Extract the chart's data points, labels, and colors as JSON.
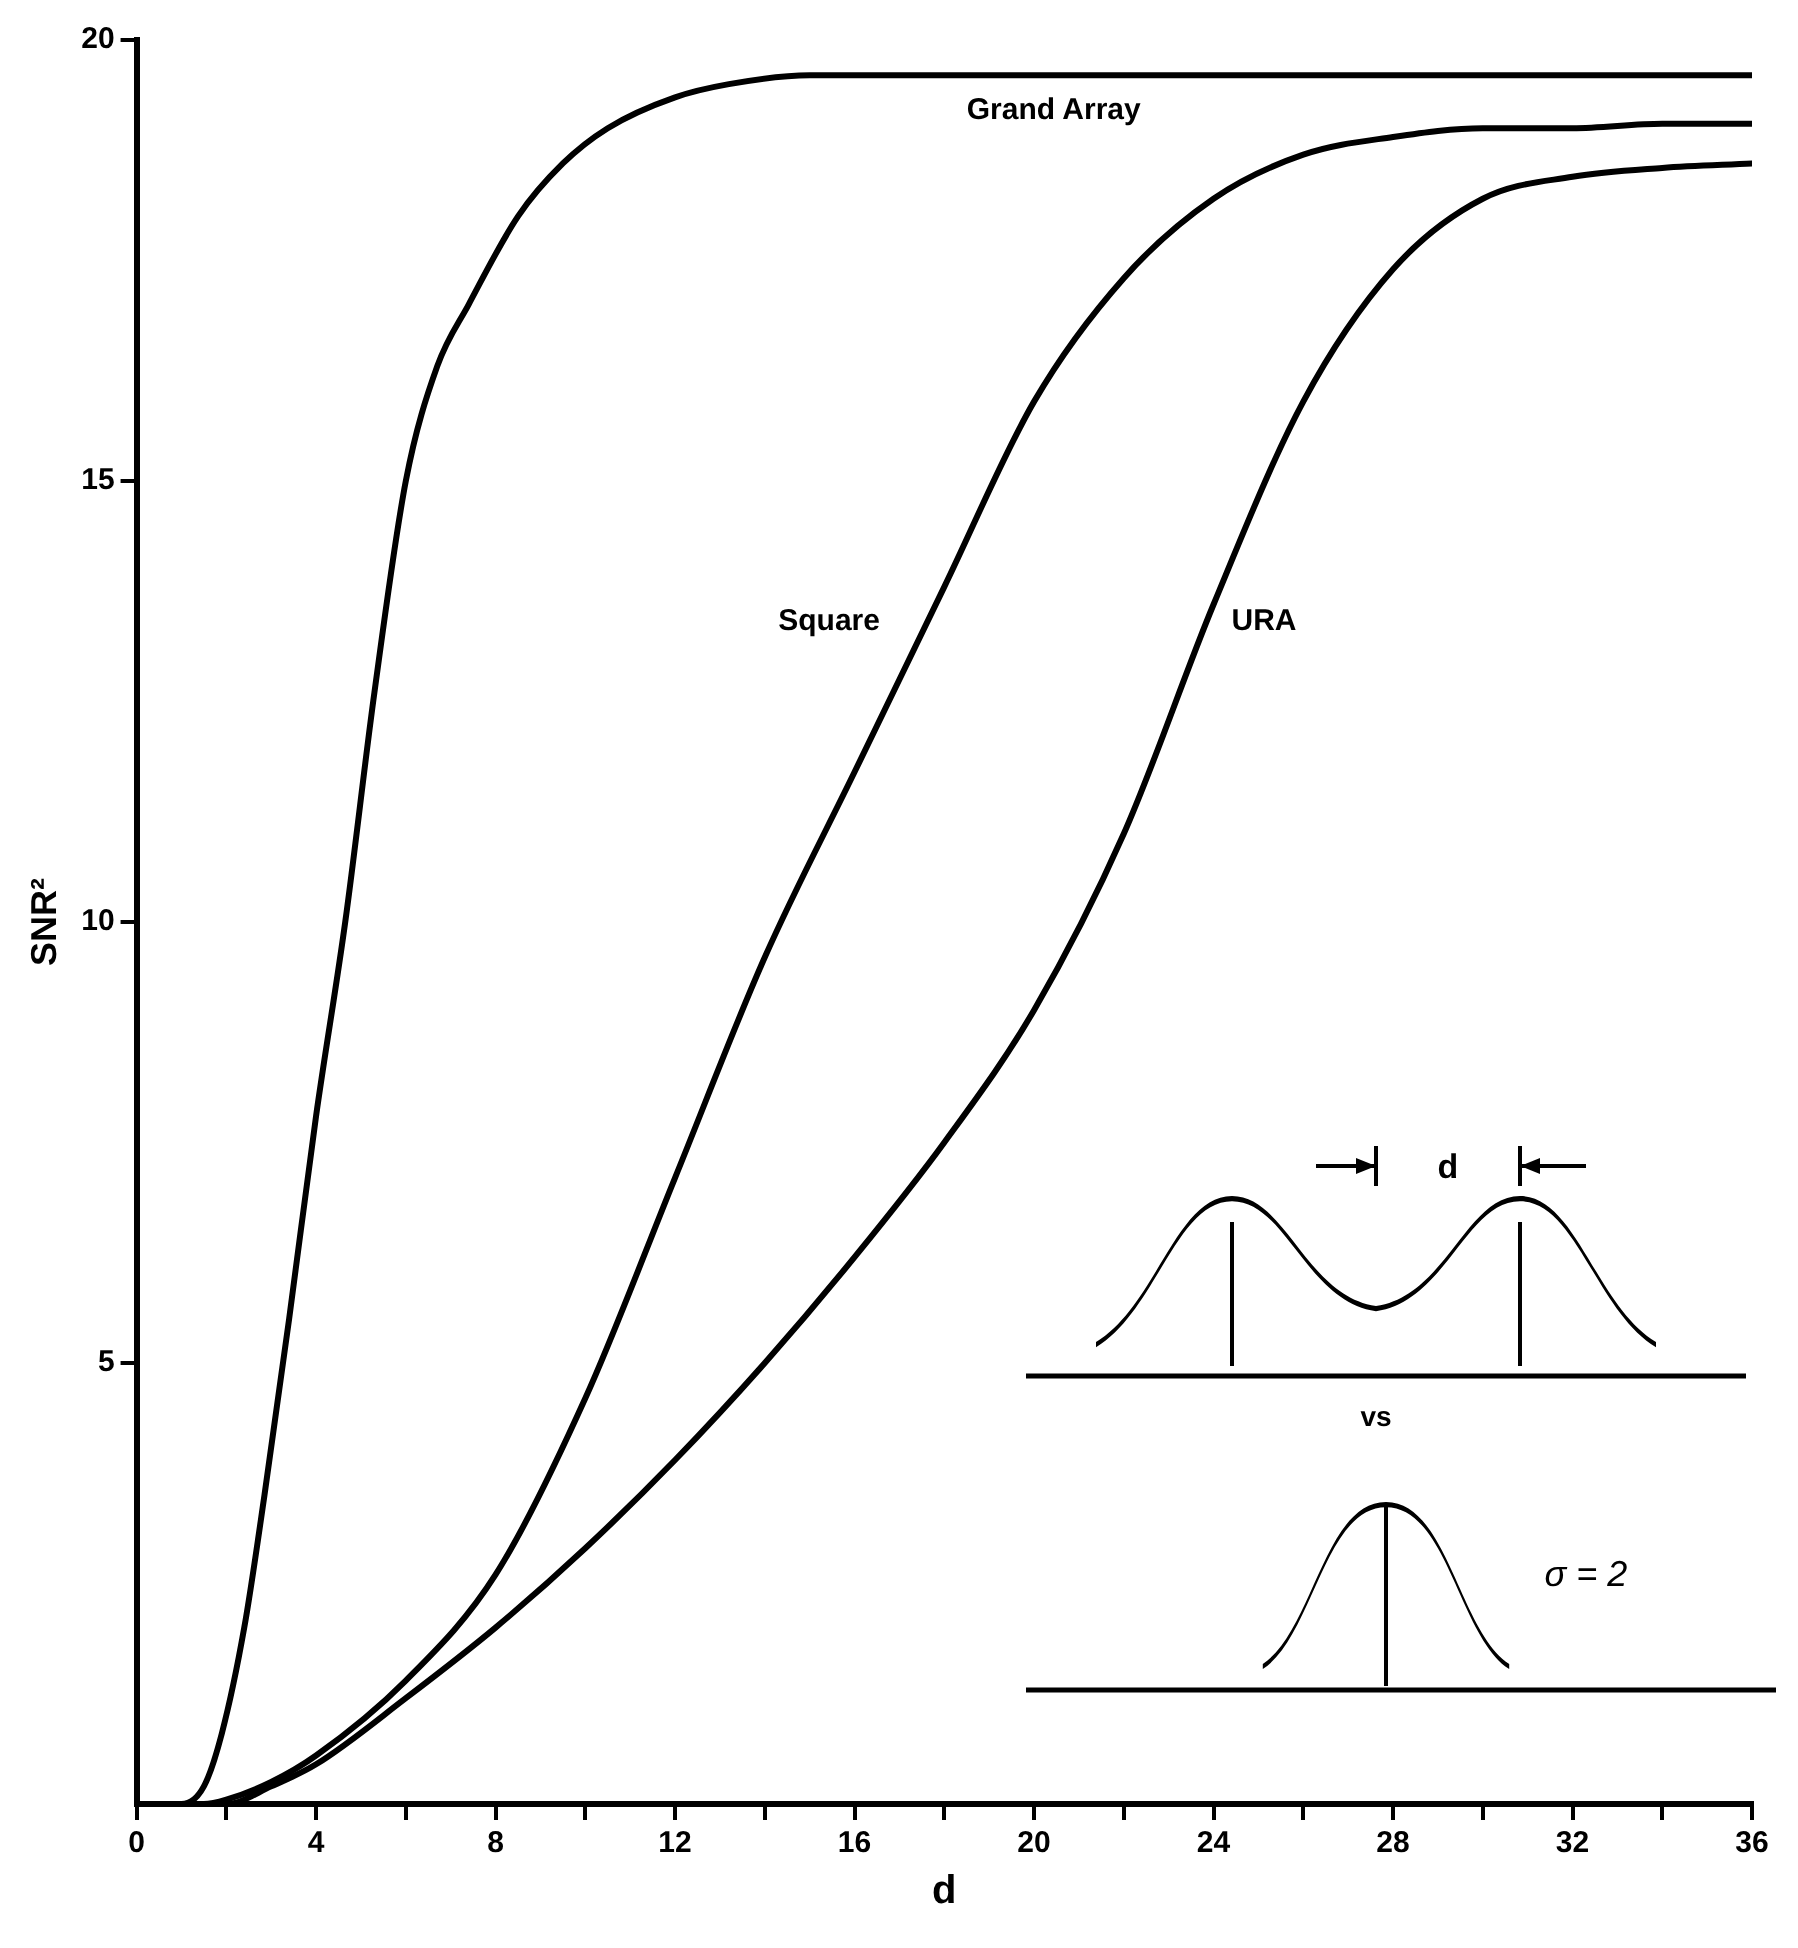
{
  "chart_data": {
    "type": "line",
    "xlabel": "d",
    "ylabel": "SNR²",
    "xlim": [
      0,
      36
    ],
    "ylim": [
      0,
      20
    ],
    "xticks": [
      0,
      {
        "value": 2,
        "label": null
      },
      4,
      {
        "value": 6,
        "label": null
      },
      8,
      {
        "value": 10,
        "label": null
      },
      12,
      {
        "value": 14,
        "label": null
      },
      16,
      {
        "value": 18,
        "label": null
      },
      20,
      {
        "value": 22,
        "label": null
      },
      24,
      {
        "value": 26,
        "label": null
      },
      28,
      {
        "value": 30,
        "label": null
      },
      32,
      {
        "value": 34,
        "label": null
      },
      36
    ],
    "yticks": [
      5,
      10,
      15,
      20
    ],
    "grid": false,
    "legend": false,
    "marker": "none",
    "line_style": "solid",
    "series": [
      {
        "name": "Grand Array",
        "color": "#000000",
        "x": [
          0,
          1,
          1.5,
          1.9,
          2.4,
          2.85,
          3.4,
          4,
          4.65,
          5.3,
          6,
          6.7,
          7.4,
          8.5,
          9.5,
          10.5,
          12,
          13.2,
          15,
          20,
          25,
          30,
          36
        ],
        "values": [
          0,
          0,
          0.2,
          0.8,
          2,
          3.5,
          5.5,
          7.8,
          10,
          12.6,
          15,
          16.3,
          17,
          18,
          18.6,
          19,
          19.35,
          19.5,
          19.6,
          19.6,
          19.6,
          19.6,
          19.6
        ]
      },
      {
        "name": "Square",
        "color": "#000000",
        "x": [
          0,
          1.5,
          2,
          3,
          4,
          6,
          8,
          10,
          12,
          14,
          16,
          18,
          20,
          22,
          24,
          26,
          28,
          30,
          32,
          34,
          36
        ],
        "values": [
          0,
          0,
          0.05,
          0.25,
          0.55,
          1.4,
          2.6,
          4.6,
          7.1,
          9.6,
          11.7,
          13.8,
          15.9,
          17.3,
          18.2,
          18.7,
          18.9,
          19,
          19,
          19.05,
          19.05
        ]
      },
      {
        "name": "URA",
        "color": "#000000",
        "x": [
          0,
          2,
          3,
          4,
          6,
          8,
          10,
          12,
          14,
          16,
          18,
          20,
          22,
          24,
          26,
          28,
          30,
          32,
          34,
          36
        ],
        "values": [
          0,
          0,
          0.2,
          0.45,
          1.2,
          2,
          2.9,
          3.9,
          5,
          6.2,
          7.5,
          9,
          11,
          13.6,
          15.9,
          17.4,
          18.2,
          18.45,
          18.55,
          18.6
        ]
      }
    ],
    "annotations": [
      "d",
      "vs",
      "σ = 2"
    ]
  }
}
